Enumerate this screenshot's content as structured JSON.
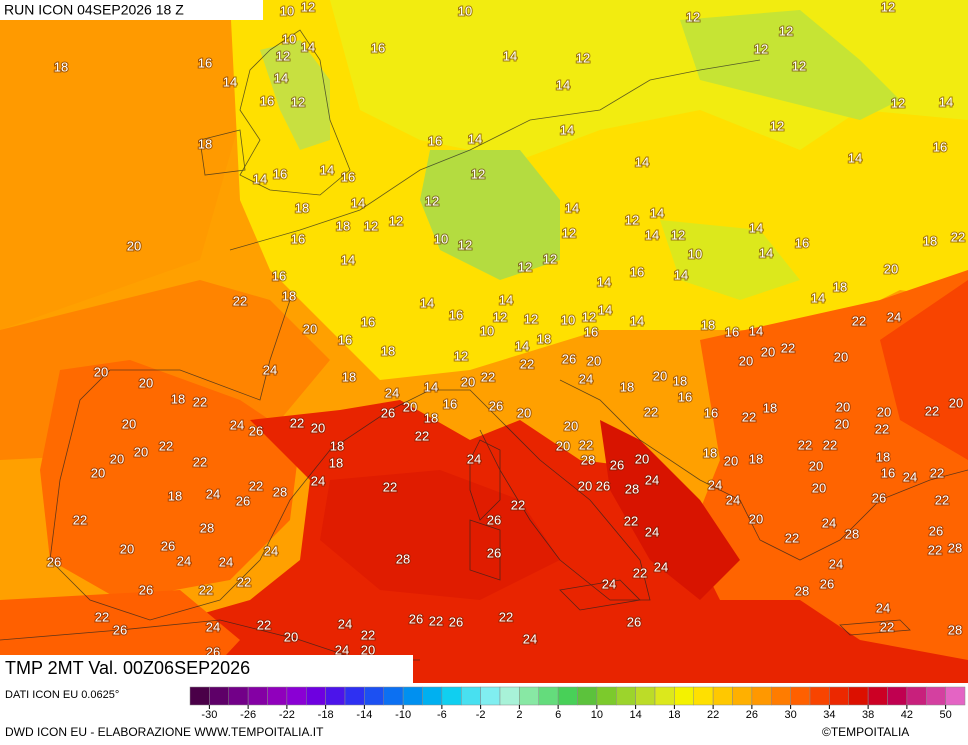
{
  "header": {
    "run": "RUN ICON 04SEP2026 18 Z"
  },
  "footer": {
    "variable": "TMP 2MT Val. 00Z06SEP2026",
    "data_source": "DATI ICON EU 0.0625°",
    "credit": "DWD ICON EU - ELABORAZIONE WWW.TEMPOITALIA.IT",
    "brand": "©TEMPOITALIA"
  },
  "legend": {
    "ticks": [
      -30,
      -26,
      -22,
      -18,
      -14,
      -10,
      -6,
      -2,
      2,
      6,
      10,
      14,
      18,
      22,
      26,
      30,
      34,
      38,
      42,
      50
    ],
    "colors": [
      "#4a0048",
      "#5e0068",
      "#720088",
      "#8400a4",
      "#9000bc",
      "#8a00d4",
      "#6e00e0",
      "#4c14ea",
      "#2e30f2",
      "#1c50f2",
      "#0c70f2",
      "#0090f0",
      "#00b0f0",
      "#10cff0",
      "#48e0f0",
      "#80eef0",
      "#a8f2d8",
      "#88e8a4",
      "#64dc7c",
      "#48d058",
      "#5cc23c",
      "#7cca2c",
      "#9cd42c",
      "#bcdc28",
      "#dce81c",
      "#f4f200",
      "#ffe000",
      "#ffc800",
      "#ffb000",
      "#ff9800",
      "#ff7c00",
      "#ff6000",
      "#f84400",
      "#ec2800",
      "#dc1000",
      "#cc0024",
      "#c00050",
      "#c8207c",
      "#d440a0",
      "#e464c4"
    ]
  },
  "map": {
    "labels": [
      10,
      12,
      10,
      12,
      12,
      10,
      14,
      16,
      18,
      16,
      14,
      12,
      14,
      14,
      12,
      12,
      12,
      12,
      14,
      16,
      12,
      12,
      14,
      18,
      16,
      14,
      14,
      12,
      16,
      14,
      16,
      14,
      16,
      12,
      14,
      14,
      18,
      14,
      12,
      18,
      12,
      12,
      14,
      12,
      14,
      16,
      10,
      12,
      12,
      14,
      12,
      14,
      16,
      18,
      22,
      20,
      14,
      12,
      12,
      10,
      14,
      20,
      16,
      14,
      16,
      14,
      18,
      22,
      14,
      14,
      16,
      14,
      18,
      14,
      20,
      16,
      10,
      12,
      12,
      10,
      12,
      16,
      14,
      18,
      16,
      14,
      24,
      22,
      16,
      18,
      12,
      14,
      18,
      24,
      20,
      18,
      20,
      22,
      22,
      26,
      20,
      24,
      20,
      20,
      22,
      20,
      20,
      18,
      22,
      24,
      14,
      20,
      26,
      16,
      26,
      18,
      20,
      18,
      16,
      18,
      20,
      20,
      22,
      20,
      20,
      24,
      26,
      22,
      20,
      18,
      22,
      20,
      22,
      18,
      20,
      20,
      22,
      16,
      22,
      20,
      22,
      22,
      20,
      20,
      18,
      24,
      28,
      26,
      20,
      18,
      20,
      18,
      22,
      22,
      20,
      18,
      16,
      24,
      22,
      20,
      22,
      22,
      28,
      24,
      22,
      20,
      26,
      28,
      24,
      24,
      18,
      24,
      26,
      24,
      20,
      26,
      22,
      22,
      28,
      26,
      22,
      22,
      20,
      24,
      22,
      28,
      26,
      26,
      20,
      24,
      24,
      24,
      26,
      24,
      22,
      28,
      26,
      28,
      24,
      24,
      22,
      26,
      22,
      22,
      24,
      26,
      28,
      24,
      22,
      26,
      24,
      22,
      20,
      24,
      26,
      22,
      26,
      22,
      26,
      22,
      28,
      22,
      24,
      26,
      24,
      20
    ]
  }
}
